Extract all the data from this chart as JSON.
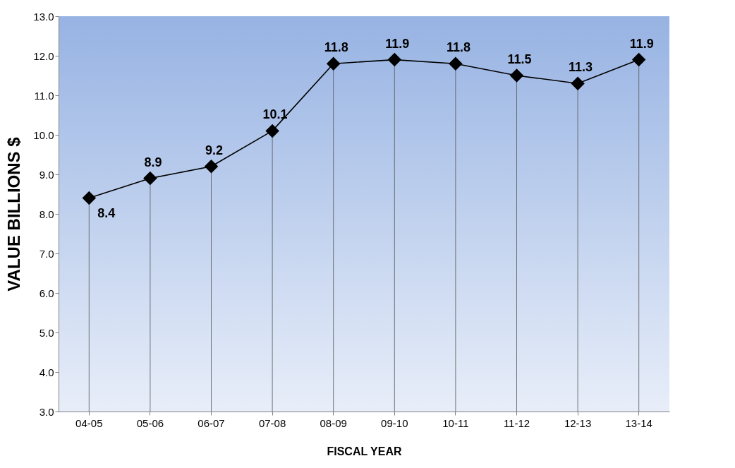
{
  "chart_data": {
    "type": "line",
    "xlabel": "FISCAL YEAR",
    "ylabel": "VALUE BILLIONS $",
    "categories": [
      "04-05",
      "05-06",
      "06-07",
      "07-08",
      "08-09",
      "09-10",
      "10-11",
      "11-12",
      "12-13",
      "13-14"
    ],
    "series": [
      {
        "color": "#000000",
        "values": [
          8.4,
          8.9,
          9.2,
          10.1,
          11.8,
          11.9,
          11.8,
          11.5,
          11.3,
          11.9
        ]
      }
    ],
    "ylim": [
      3,
      13
    ],
    "yticks": [
      {
        "value": 3,
        "label": "3.0"
      },
      {
        "value": 4,
        "label": "4.0"
      },
      {
        "value": 5,
        "label": "5.0"
      },
      {
        "value": 6,
        "label": "6.0"
      },
      {
        "value": 7,
        "label": "7.0"
      },
      {
        "value": 8,
        "label": "8.0"
      },
      {
        "value": 9,
        "label": "9.0"
      },
      {
        "value": 10,
        "label": "10.0"
      },
      {
        "value": 11,
        "label": "11.0"
      },
      {
        "value": 12,
        "label": "12.0"
      },
      {
        "value": 13,
        "label": "13.0"
      }
    ],
    "data_labels": true,
    "marker": "diamond",
    "line_style": "solid",
    "grid": "x"
  }
}
